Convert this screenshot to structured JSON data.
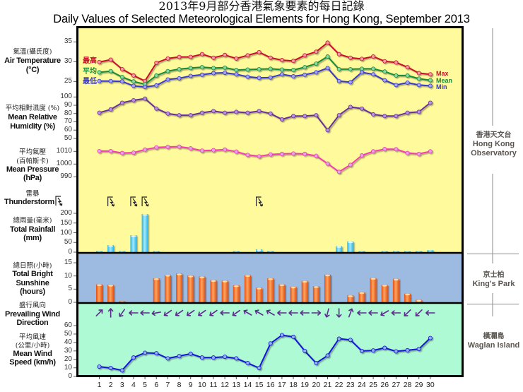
{
  "title": {
    "zh": "2013年9月部分香港氣象要素的每日記錄",
    "en": "Daily Values of Selected Meteorological Elements for Hong Kong, September 2013"
  },
  "panels": {
    "temperature": {
      "zh": "氣溫(攝氏度)",
      "en": "Air Temperature",
      "unit": "(°C)",
      "ticks": [
        35,
        30,
        25
      ],
      "legend_left": {
        "max": "最高",
        "mean": "平均",
        "min": "最低"
      },
      "legend_right": {
        "max": "Max",
        "mean": "Mean",
        "min": "Min"
      }
    },
    "humidity": {
      "zh": "平均相對濕度 (%)",
      "en1": "Mean Relative",
      "en2": "Humidity (%)",
      "ticks": [
        100,
        90,
        80,
        70,
        60,
        50
      ]
    },
    "pressure": {
      "zh1": "平均氣壓",
      "zh2": "(百帕斯卡)",
      "en1": "Mean Pressure",
      "en2": "(hPa)",
      "ticks": [
        1010,
        1000,
        990
      ]
    },
    "thunderstorm": {
      "zh": "雷暴",
      "en": "Thunderstorm",
      "icon": "thunderstorm-icon"
    },
    "rainfall": {
      "zh": "總雨量(毫米)",
      "en1": "Total Rainfall",
      "en2": "(mm)",
      "ticks": [
        200,
        150,
        100,
        50,
        0
      ]
    },
    "sunshine": {
      "zh": "總日照(小時)",
      "en1": "Total Bright",
      "en2": "Sunshine",
      "en3": "(hours)",
      "ticks": [
        15,
        10,
        5,
        0
      ]
    },
    "wind_direction": {
      "zh": "盛行風向",
      "en1": "Prevailing Wind",
      "en2": "Direction"
    },
    "wind_speed": {
      "zh1": "平均風速",
      "zh2": "(公里/小時)",
      "en1": "Mean Wind",
      "en2": "Speed (km/h)",
      "ticks": [
        60,
        50,
        40,
        30,
        20,
        10,
        0
      ]
    }
  },
  "stations": [
    {
      "zh": "香港天文台",
      "en1": "Hong Kong",
      "en2": "Observatory"
    },
    {
      "zh": "京士柏",
      "en1": "King's Park"
    },
    {
      "zh": "橫瀾島",
      "en1": "Waglan Island"
    }
  ],
  "colors": {
    "panel_yellow": "#FFFA9B",
    "panel_blue": "#9DBAE0",
    "panel_green": "#AEFAD4",
    "max": "#C8102E",
    "max_marker": "#F29AA6",
    "mean": "#178A3A",
    "mean_marker": "#86D9A0",
    "min": "#3838CC",
    "min_marker": "#A3A3F2",
    "humidity": "#6A2E9C",
    "humidity_marker": "#B890E6",
    "pressure": "#F03CB4",
    "pressure_marker": "#E4A0EA",
    "wind_speed": "#1212D6",
    "wind_speed_marker": "#8FB0F2",
    "rain_bar": "#22B4E6",
    "rain_bar_light": "#A6E9FB",
    "sun_bar": "#E24E14",
    "sun_bar_light": "#FFA55C",
    "wind_arrow": "#5B2C8C",
    "station_line": "#8A8A8A"
  },
  "chart_data": [
    {
      "type": "line",
      "title": "Air Temperature (°C)",
      "x": [
        1,
        2,
        3,
        4,
        5,
        6,
        7,
        8,
        9,
        10,
        11,
        12,
        13,
        14,
        15,
        16,
        17,
        18,
        19,
        20,
        21,
        22,
        23,
        24,
        25,
        26,
        27,
        28,
        29,
        30
      ],
      "series": [
        {
          "name": "Max",
          "values": [
            29.9,
            30.5,
            28.1,
            26.5,
            25.1,
            29.7,
            30.8,
            31.2,
            31.2,
            31.9,
            31.0,
            31.7,
            30.8,
            31.6,
            32.4,
            31.0,
            30.4,
            30.2,
            31.6,
            32.5,
            34.8,
            31.9,
            31.0,
            30.7,
            31.3,
            30.1,
            29.8,
            28.6,
            27.1,
            26.8
          ]
        },
        {
          "name": "Mean",
          "values": [
            27.3,
            27.6,
            26.1,
            25.0,
            24.3,
            26.5,
            27.6,
            28.1,
            28.4,
            28.6,
            28.4,
            28.5,
            27.9,
            28.0,
            28.1,
            28.2,
            28.0,
            27.9,
            28.6,
            29.5,
            31.3,
            28.1,
            28.1,
            28.2,
            28.2,
            27.5,
            26.5,
            26.5,
            25.7,
            25.3
          ]
        },
        {
          "name": "Min",
          "values": [
            25.1,
            25.1,
            25.0,
            23.9,
            23.6,
            24.0,
            25.5,
            25.8,
            26.4,
            26.7,
            27.1,
            27.2,
            26.8,
            26.2,
            25.9,
            26.0,
            26.8,
            26.3,
            26.7,
            27.3,
            28.4,
            25.1,
            24.8,
            27.3,
            26.8,
            25.3,
            24.1,
            24.7,
            24.1,
            23.9
          ]
        }
      ],
      "xlabel": "",
      "ylabel": "Air Temperature (°C)",
      "ylim": [
        23,
        36
      ],
      "yticks": [
        25,
        30,
        35
      ],
      "station": "Hong Kong Observatory"
    },
    {
      "type": "line",
      "title": "Mean Relative Humidity (%)",
      "x": [
        1,
        2,
        3,
        4,
        5,
        6,
        7,
        8,
        9,
        10,
        11,
        12,
        13,
        14,
        15,
        16,
        17,
        18,
        19,
        20,
        21,
        22,
        23,
        24,
        25,
        26,
        27,
        28,
        29,
        30
      ],
      "values": [
        81,
        85,
        93,
        96,
        98,
        86,
        80,
        78,
        78,
        81,
        83,
        81,
        82,
        81,
        83,
        80,
        73,
        77,
        77,
        78,
        60,
        78,
        88,
        86,
        79,
        77,
        77,
        81,
        82,
        93
      ],
      "ylabel": "Mean Relative Humidity (%)",
      "ylim": [
        50,
        100
      ],
      "yticks": [
        50,
        60,
        70,
        80,
        90,
        100
      ],
      "station": "Hong Kong Observatory"
    },
    {
      "type": "line",
      "title": "Mean Pressure (hPa)",
      "x": [
        1,
        2,
        3,
        4,
        5,
        6,
        7,
        8,
        9,
        10,
        11,
        12,
        13,
        14,
        15,
        16,
        17,
        18,
        19,
        20,
        21,
        22,
        23,
        24,
        25,
        26,
        27,
        28,
        29,
        30
      ],
      "values": [
        1010.2,
        1010.2,
        1008.7,
        1009.0,
        1011.4,
        1013.1,
        1013.5,
        1013.7,
        1012.4,
        1010.6,
        1010.9,
        1011.4,
        1009.8,
        1007.2,
        1006.1,
        1007.6,
        1008.0,
        1008.3,
        1008.0,
        1006.5,
        1000.4,
        993.9,
        999.4,
        1006.8,
        1010.0,
        1011.8,
        1011.7,
        1008.7,
        1008.0,
        1010.0
      ],
      "ylabel": "Mean Pressure (hPa)",
      "ylim": [
        990,
        1015
      ],
      "yticks": [
        990,
        1000,
        1010
      ],
      "station": "Hong Kong Observatory"
    },
    {
      "type": "scatter",
      "title": "Thunderstorm",
      "days": [
        2,
        4,
        5,
        15
      ],
      "station": "Hong Kong Observatory"
    },
    {
      "type": "bar",
      "title": "Total Rainfall (mm)",
      "x": [
        1,
        2,
        3,
        4,
        5,
        6,
        7,
        8,
        9,
        10,
        11,
        12,
        13,
        14,
        15,
        16,
        17,
        18,
        19,
        20,
        21,
        22,
        23,
        24,
        25,
        26,
        27,
        28,
        29,
        30
      ],
      "values": [
        0.1,
        36,
        5,
        87,
        196,
        0.1,
        0,
        0,
        0,
        0,
        0,
        0,
        0.1,
        0,
        15,
        0.1,
        0,
        0,
        0,
        0,
        0,
        31,
        55,
        0.1,
        0,
        0.1,
        0.1,
        2,
        2,
        10
      ],
      "ylabel": "Total Rainfall (mm)",
      "ylim": [
        0,
        200
      ],
      "yticks": [
        0,
        50,
        100,
        150,
        200
      ],
      "station": "Hong Kong Observatory"
    },
    {
      "type": "bar",
      "title": "Total Bright Sunshine (hours)",
      "x": [
        1,
        2,
        3,
        4,
        5,
        6,
        7,
        8,
        9,
        10,
        11,
        12,
        13,
        14,
        15,
        16,
        17,
        18,
        19,
        20,
        21,
        22,
        23,
        24,
        25,
        26,
        27,
        28,
        29,
        30
      ],
      "values": [
        6.8,
        6.6,
        0.1,
        0,
        0,
        9.1,
        10.4,
        10.9,
        10.1,
        9.8,
        8.4,
        8.2,
        6.4,
        10.3,
        5.5,
        9.1,
        6.8,
        5.9,
        8.1,
        6.1,
        10.5,
        0,
        2.6,
        3.8,
        9.2,
        6.6,
        8.9,
        3.3,
        0.9,
        0
      ],
      "ylabel": "Total Bright Sunshine (hours)",
      "ylim": [
        0,
        15
      ],
      "yticks": [
        0,
        5,
        10,
        15
      ],
      "station": "King's Park"
    },
    {
      "type": "table",
      "title": "Prevailing Wind Direction",
      "x": [
        1,
        2,
        3,
        4,
        5,
        6,
        7,
        8,
        9,
        10,
        11,
        12,
        13,
        14,
        15,
        16,
        17,
        18,
        19,
        20,
        21,
        22,
        23,
        24,
        25,
        26,
        27,
        28,
        29,
        30
      ],
      "arrow_degrees": [
        45,
        0,
        215,
        270,
        270,
        260,
        235,
        235,
        235,
        235,
        235,
        270,
        235,
        300,
        300,
        300,
        270,
        270,
        270,
        90,
        195,
        180,
        20,
        270,
        270,
        240,
        270,
        225,
        225,
        270
      ],
      "note": "arrow points in direction wind blows toward (0 = up)",
      "station": "Waglan Island"
    },
    {
      "type": "line",
      "title": "Mean Wind Speed (km/h)",
      "x": [
        1,
        2,
        3,
        4,
        5,
        6,
        7,
        8,
        9,
        10,
        11,
        12,
        13,
        14,
        15,
        16,
        17,
        18,
        19,
        20,
        21,
        22,
        23,
        24,
        25,
        26,
        27,
        28,
        29,
        30
      ],
      "values": [
        11.4,
        9.8,
        7.0,
        22.2,
        27.8,
        27.3,
        21.2,
        23.9,
        26.7,
        22.2,
        22.2,
        23.1,
        21.2,
        15.6,
        9.8,
        38.9,
        48.7,
        46.7,
        30.0,
        15.6,
        24.5,
        44.5,
        43.1,
        30.0,
        30.6,
        33.6,
        29.5,
        30.8,
        32.3,
        45.3
      ],
      "ylabel": "Mean Wind Speed (km/h)",
      "ylim": [
        0,
        60
      ],
      "yticks": [
        0,
        10,
        20,
        30,
        40,
        50,
        60
      ],
      "station": "Waglan Island"
    }
  ]
}
